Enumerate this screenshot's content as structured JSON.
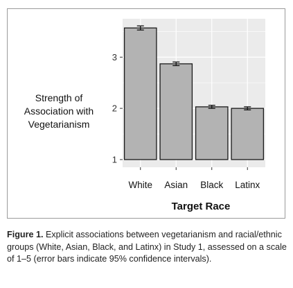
{
  "chart_data": {
    "type": "bar",
    "categories": [
      "White",
      "Asian",
      "Black",
      "Latinx"
    ],
    "values": [
      3.57,
      2.87,
      2.03,
      2.0
    ],
    "error": [
      0.04,
      0.035,
      0.03,
      0.03
    ],
    "ylabel": "Strength of\nAssociation with\nVegetarianism",
    "xlabel": "Target Race",
    "yticks": [
      1,
      2,
      3
    ],
    "ylim": [
      0.85,
      3.75
    ],
    "grid": true,
    "colors": {
      "panel": "#ebebeb",
      "grid": "#ffffff",
      "bar": "#b3b3b3",
      "bar_outline": "#1a1a1a"
    }
  },
  "caption": {
    "label": "Figure 1.",
    "text": " Explicit associations between vegetarianism and racial/ethnic groups (White, Asian, Black, and Latinx) in Study 1, assessed on a scale of 1–5 (error bars indicate 95% confidence intervals)."
  }
}
